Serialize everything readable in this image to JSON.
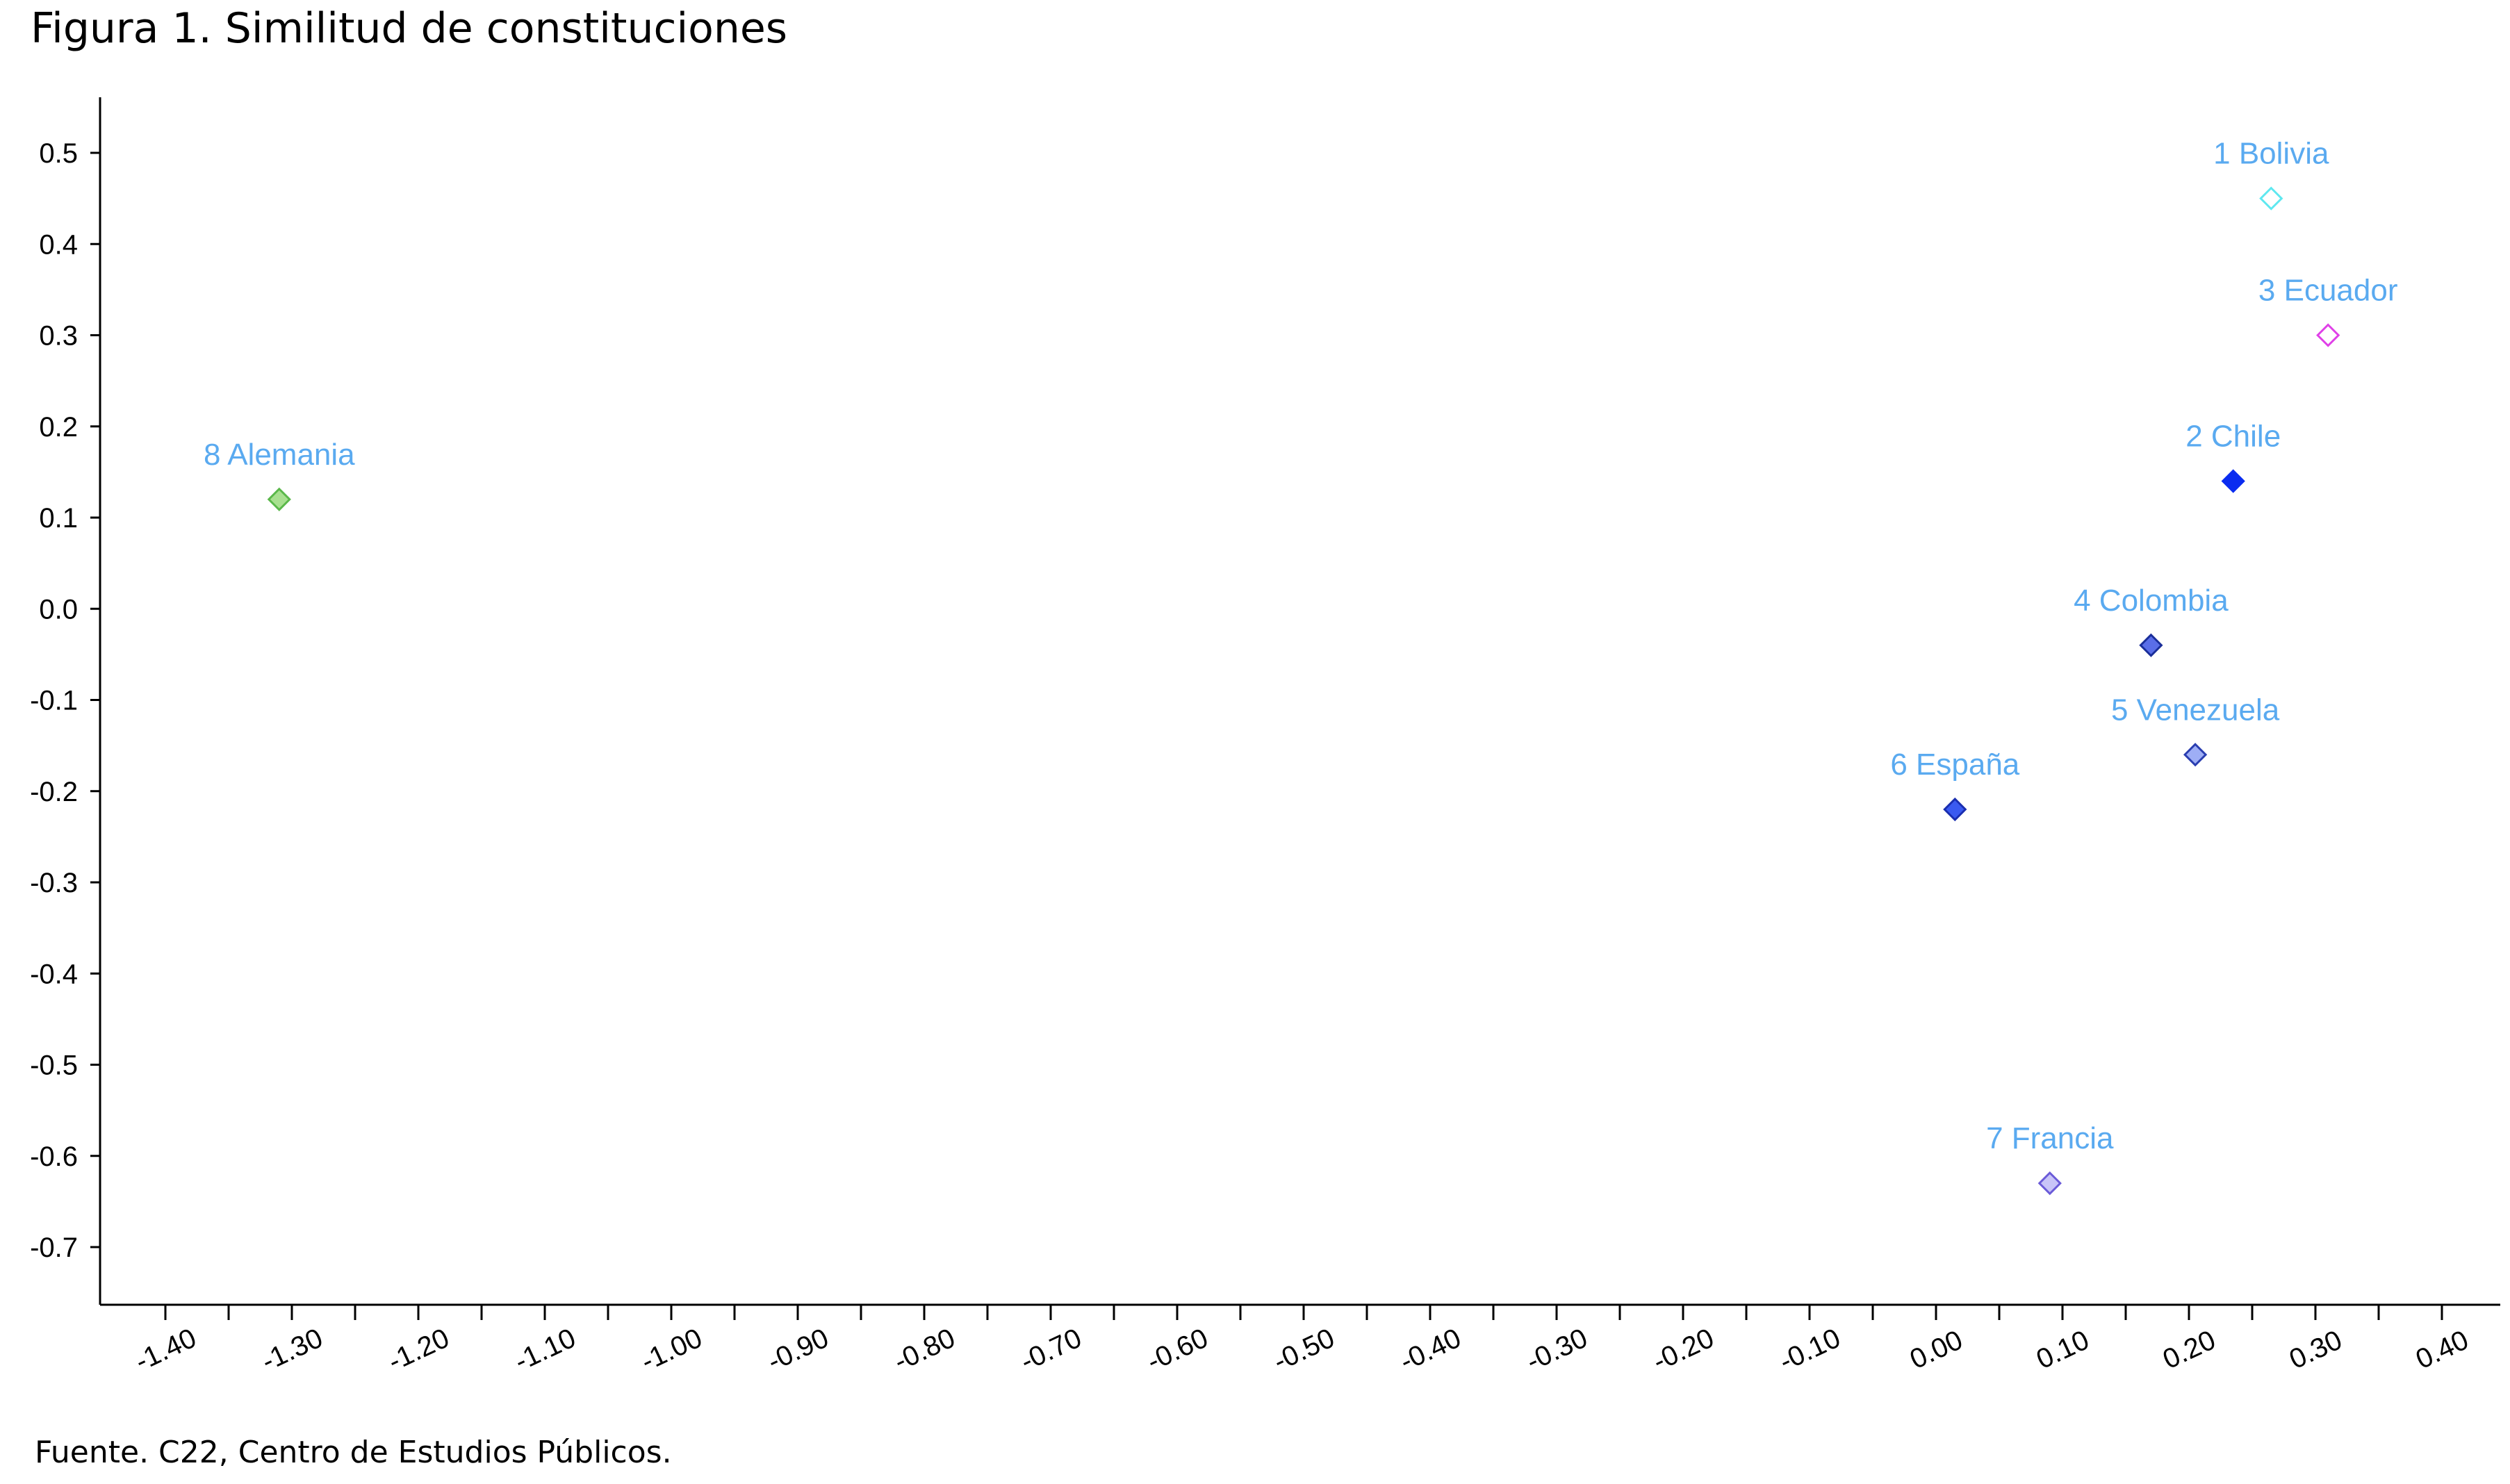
{
  "title": "Figura 1. Similitud de constituciones",
  "source": "Fuente. C22, Centro de Estudios Públicos.",
  "chart_data": {
    "type": "scatter",
    "title": "Figura 1. Similitud de constituciones",
    "xlabel": "",
    "ylabel": "",
    "xlim": [
      -1.4,
      0.4
    ],
    "ylim": [
      -0.7,
      0.5
    ],
    "x_ticks": [
      "-1.40",
      "-1.30",
      "-1.20",
      "-1.10",
      "-1.00",
      "-0.90",
      "-0.80",
      "-0.70",
      "-0.60",
      "-0.50",
      "-0.40",
      "-0.30",
      "-0.20",
      "-0.10",
      "0.00",
      "0.10",
      "0.20",
      "0.30",
      "0.40"
    ],
    "y_ticks": [
      "0.5",
      "0.4",
      "0.3",
      "0.2",
      "0.1",
      "0.0",
      "-0.1",
      "-0.2",
      "-0.3",
      "-0.4",
      "-0.5",
      "-0.6",
      "-0.7"
    ],
    "grid": false,
    "label_color": "#5aaaf0",
    "points": [
      {
        "label": "1 Bolivia",
        "x": 0.265,
        "y": 0.45,
        "fill": "#ffffff",
        "stroke": "#5ee8f0"
      },
      {
        "label": "2 Chile",
        "x": 0.235,
        "y": 0.14,
        "fill": "#0a2cf0",
        "stroke": "#0a2cf0"
      },
      {
        "label": "3 Ecuador",
        "x": 0.31,
        "y": 0.3,
        "fill": "#ffffff",
        "stroke": "#e040e8"
      },
      {
        "label": "4 Colombia",
        "x": 0.17,
        "y": -0.04,
        "fill": "#5a6ee8",
        "stroke": "#1a2e9a"
      },
      {
        "label": "5 Venezuela",
        "x": 0.205,
        "y": -0.16,
        "fill": "#9eaef5",
        "stroke": "#2a3eb0"
      },
      {
        "label": "6 España",
        "x": 0.015,
        "y": -0.22,
        "fill": "#3a5af0",
        "stroke": "#1a2eb0"
      },
      {
        "label": "7 Francia",
        "x": 0.09,
        "y": -0.63,
        "fill": "#c8c4f8",
        "stroke": "#6a5ad8"
      },
      {
        "label": "8 Alemania",
        "x": -1.31,
        "y": 0.12,
        "fill": "#a8e090",
        "stroke": "#5ab84a"
      }
    ]
  }
}
